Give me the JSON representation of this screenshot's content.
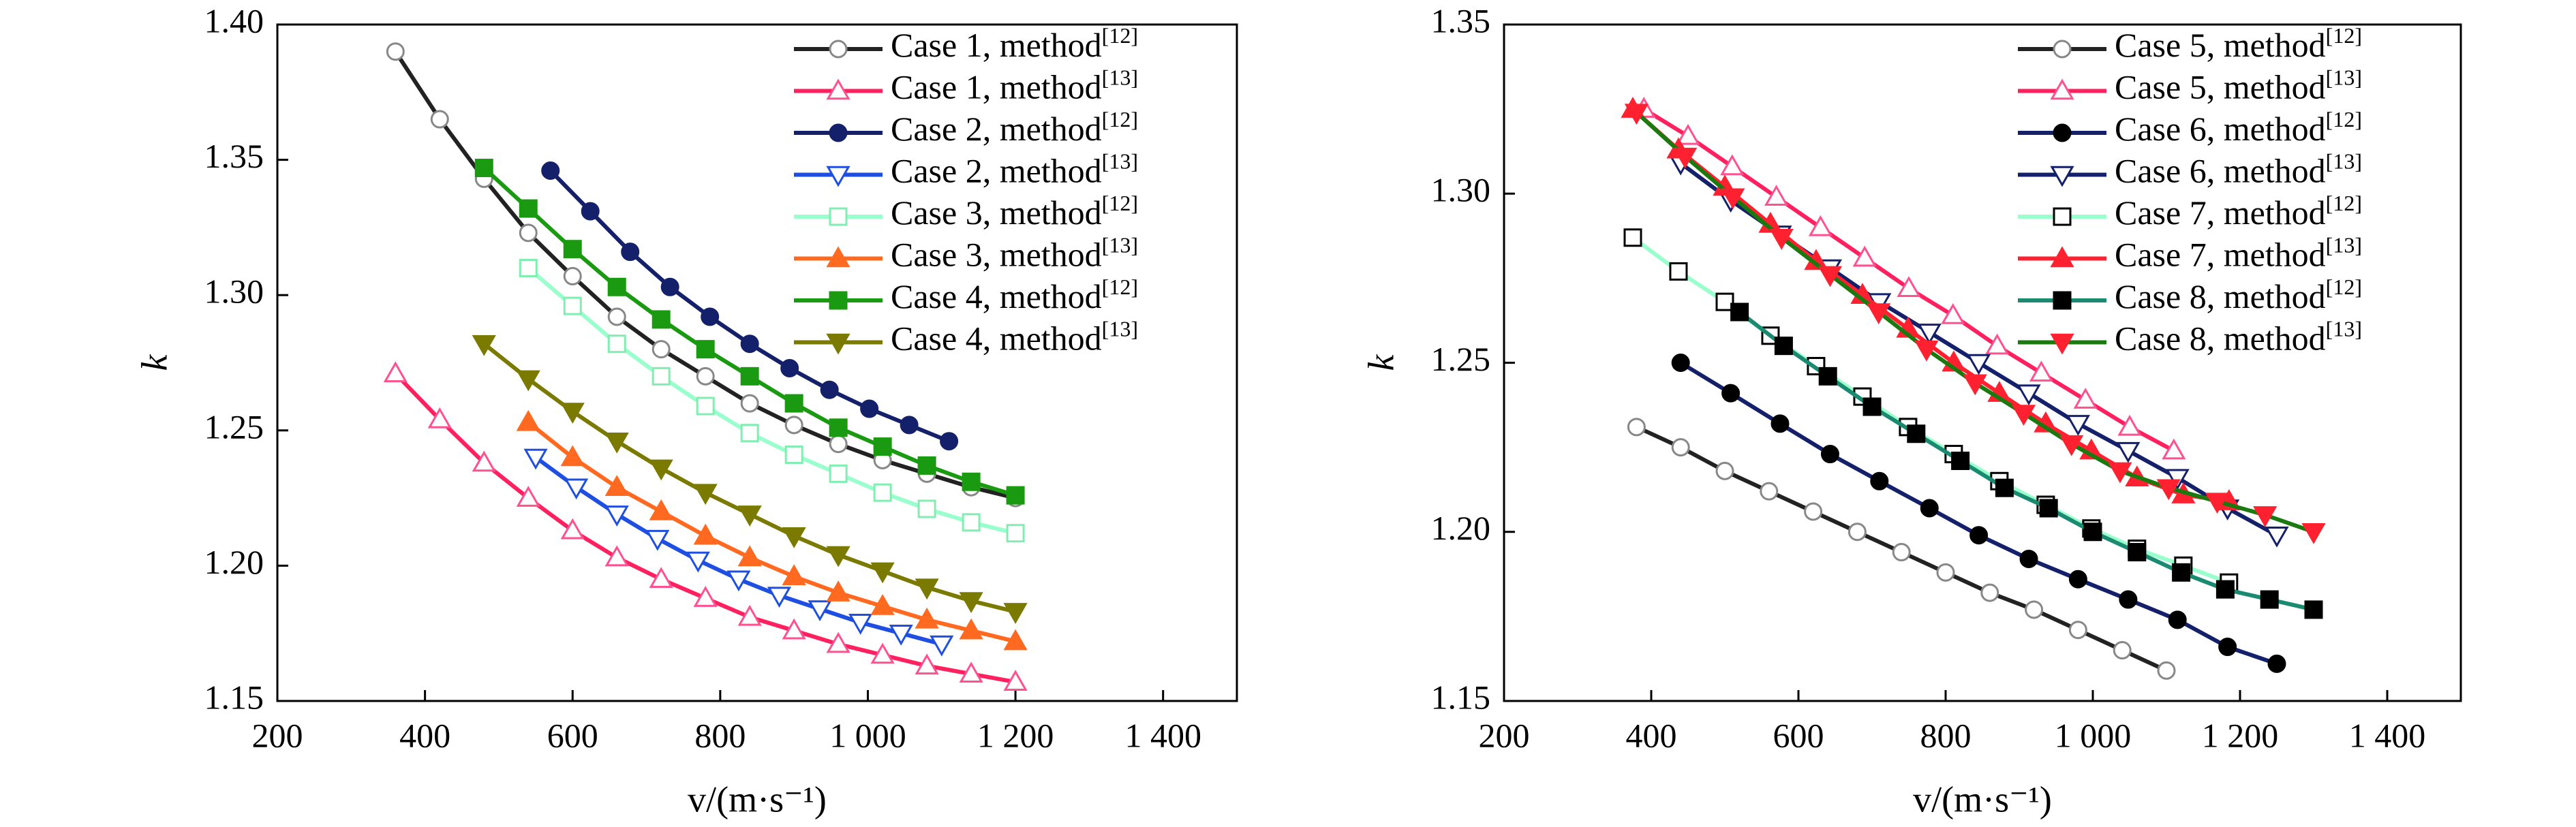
{
  "chart_data": [
    {
      "type": "line",
      "y_label": "k",
      "x_label": "v/(m·s⁻¹)",
      "xlim": [
        200,
        1500
      ],
      "xticks": [
        200,
        400,
        600,
        800,
        {
          "value": 1000,
          "label": "1 000"
        },
        {
          "value": 1200,
          "label": "1 200"
        },
        {
          "value": 1400,
          "label": "1 400"
        }
      ],
      "ylim": [
        1.15,
        1.4
      ],
      "yticks": [
        1.15,
        {
          "value": 1.2,
          "label": "1.20"
        },
        1.25,
        {
          "value": 1.3,
          "label": "1.30"
        },
        1.35,
        {
          "value": 1.4,
          "label": "1.40"
        }
      ],
      "legend": "upper right",
      "series": [
        {
          "name": "Case 1, method",
          "ref": "[12]",
          "color": "#222222",
          "marker": "circle",
          "marker_fill": "#ffffff",
          "marker_stroke": "#888888",
          "x": [
            360,
            420,
            480,
            540,
            600,
            660,
            720,
            780,
            840,
            900,
            960,
            1020,
            1080,
            1140,
            1200
          ],
          "values": [
            1.39,
            1.365,
            1.343,
            1.323,
            1.307,
            1.292,
            1.28,
            1.27,
            1.26,
            1.252,
            1.245,
            1.239,
            1.234,
            1.229,
            1.225
          ]
        },
        {
          "name": "Case 1, method",
          "ref": "[13]",
          "color": "#ff2060",
          "marker": "triangle",
          "marker_fill": "#ffffff",
          "marker_stroke": "#ff5090",
          "x": [
            360,
            420,
            480,
            540,
            600,
            660,
            720,
            780,
            840,
            900,
            960,
            1020,
            1080,
            1140,
            1200
          ],
          "values": [
            1.271,
            1.254,
            1.238,
            1.225,
            1.213,
            1.203,
            1.195,
            1.188,
            1.181,
            1.176,
            1.171,
            1.167,
            1.163,
            1.16,
            1.157
          ]
        },
        {
          "name": "Case 2, method",
          "ref": "[12]",
          "color": "#14206a",
          "marker": "circle",
          "marker_fill": "#14206a",
          "marker_stroke": "#14206a",
          "x": [
            570,
            624,
            678,
            732,
            786,
            840,
            894,
            948,
            1002,
            1056,
            1110
          ],
          "values": [
            1.346,
            1.331,
            1.316,
            1.303,
            1.292,
            1.282,
            1.273,
            1.265,
            1.258,
            1.252,
            1.246
          ]
        },
        {
          "name": "Case 2, method",
          "ref": "[13]",
          "color": "#1f4fe0",
          "marker": "triangle-down",
          "marker_fill": "#ffffff",
          "marker_stroke": "#1f4fe0",
          "x": [
            550,
            605,
            660,
            715,
            770,
            825,
            880,
            935,
            990,
            1045,
            1100
          ],
          "values": [
            1.24,
            1.229,
            1.219,
            1.21,
            1.202,
            1.195,
            1.189,
            1.184,
            1.179,
            1.175,
            1.171
          ]
        },
        {
          "name": "Case 3, method",
          "ref": "[12]",
          "color": "#99ffcc",
          "marker": "square",
          "marker_fill": "#ffffff",
          "marker_stroke": "#80eeb0",
          "x": [
            540,
            600,
            660,
            720,
            780,
            840,
            900,
            960,
            1020,
            1080,
            1140,
            1200
          ],
          "values": [
            1.31,
            1.296,
            1.282,
            1.27,
            1.259,
            1.249,
            1.241,
            1.234,
            1.227,
            1.221,
            1.216,
            1.212
          ]
        },
        {
          "name": "Case 3, method",
          "ref": "[13]",
          "color": "#ff6a20",
          "marker": "triangle",
          "marker_fill": "#ff6a20",
          "marker_stroke": "#ff6a20",
          "x": [
            540,
            600,
            660,
            720,
            780,
            840,
            900,
            960,
            1020,
            1080,
            1140,
            1200
          ],
          "values": [
            1.253,
            1.24,
            1.229,
            1.22,
            1.211,
            1.203,
            1.196,
            1.19,
            1.185,
            1.18,
            1.176,
            1.172
          ]
        },
        {
          "name": "Case 4, method",
          "ref": "[12]",
          "color": "#1a9a10",
          "marker": "square",
          "marker_fill": "#1a9a10",
          "marker_stroke": "#1a9a10",
          "x": [
            480,
            540,
            600,
            660,
            720,
            780,
            840,
            900,
            960,
            1020,
            1080,
            1140,
            1200
          ],
          "values": [
            1.347,
            1.332,
            1.317,
            1.303,
            1.291,
            1.28,
            1.27,
            1.26,
            1.251,
            1.244,
            1.237,
            1.231,
            1.226
          ]
        },
        {
          "name": "Case 4, method",
          "ref": "[13]",
          "color": "#7a7a00",
          "marker": "triangle-down",
          "marker_fill": "#7a7a00",
          "marker_stroke": "#7a7a00",
          "x": [
            480,
            540,
            600,
            660,
            720,
            780,
            840,
            900,
            960,
            1020,
            1080,
            1140,
            1200
          ],
          "values": [
            1.282,
            1.269,
            1.257,
            1.246,
            1.236,
            1.227,
            1.219,
            1.211,
            1.204,
            1.198,
            1.192,
            1.187,
            1.183
          ]
        }
      ]
    },
    {
      "type": "line",
      "y_label": "k",
      "x_label": "v/(m·s⁻¹)",
      "xlim": [
        200,
        1500
      ],
      "xticks": [
        200,
        400,
        600,
        800,
        {
          "value": 1000,
          "label": "1 000"
        },
        {
          "value": 1200,
          "label": "1 200"
        },
        {
          "value": 1400,
          "label": "1 400"
        }
      ],
      "ylim": [
        1.15,
        1.35
      ],
      "yticks": [
        1.15,
        {
          "value": 1.2,
          "label": "1.20"
        },
        1.25,
        {
          "value": 1.3,
          "label": "1.30"
        },
        1.35
      ],
      "legend": "upper right",
      "series": [
        {
          "name": "Case 5, method",
          "ref": "[12]",
          "color": "#222222",
          "marker": "circle",
          "marker_fill": "#ffffff",
          "marker_stroke": "#888888",
          "x": [
            380,
            440,
            500,
            560,
            620,
            680,
            740,
            800,
            860,
            920,
            980,
            1040,
            1100
          ],
          "values": [
            1.231,
            1.225,
            1.218,
            1.212,
            1.206,
            1.2,
            1.194,
            1.188,
            1.182,
            1.177,
            1.171,
            1.165,
            1.159
          ]
        },
        {
          "name": "Case 5, method",
          "ref": "[13]",
          "color": "#ff2060",
          "marker": "triangle",
          "marker_fill": "#ffffff",
          "marker_stroke": "#ff5090",
          "x": [
            390,
            450,
            510,
            570,
            630,
            690,
            750,
            810,
            870,
            930,
            990,
            1050,
            1110
          ],
          "values": [
            1.325,
            1.317,
            1.308,
            1.299,
            1.29,
            1.281,
            1.272,
            1.264,
            1.255,
            1.247,
            1.239,
            1.231,
            1.224
          ]
        },
        {
          "name": "Case 6, method",
          "ref": "[12]",
          "color": "#14206a",
          "marker": "circle",
          "marker_fill": "#000000",
          "marker_stroke": "#000000",
          "x": [
            440,
            508,
            575,
            643,
            710,
            778,
            845,
            913,
            980,
            1048,
            1115,
            1183,
            1250
          ],
          "values": [
            1.25,
            1.241,
            1.232,
            1.223,
            1.215,
            1.207,
            1.199,
            1.192,
            1.186,
            1.18,
            1.174,
            1.166,
            1.161
          ]
        },
        {
          "name": "Case 6, method",
          "ref": "[13]",
          "color": "#14206a",
          "marker": "triangle-down",
          "marker_fill": "#ffffff",
          "marker_stroke": "#14206a",
          "x": [
            440,
            508,
            575,
            643,
            710,
            778,
            845,
            913,
            980,
            1048,
            1115,
            1183,
            1250
          ],
          "values": [
            1.309,
            1.298,
            1.288,
            1.278,
            1.268,
            1.259,
            1.25,
            1.241,
            1.232,
            1.224,
            1.216,
            1.207,
            1.199
          ]
        },
        {
          "name": "Case 7, method",
          "ref": "[12]",
          "color": "#99ffcc",
          "marker": "square",
          "marker_fill": "#ffffff",
          "marker_stroke": "#000000",
          "x": [
            375,
            437,
            500,
            562,
            624,
            687,
            749,
            811,
            873,
            936,
            998,
            1060,
            1123,
            1185
          ],
          "values": [
            1.287,
            1.277,
            1.268,
            1.258,
            1.249,
            1.24,
            1.231,
            1.223,
            1.215,
            1.208,
            1.201,
            1.195,
            1.19,
            1.185
          ]
        },
        {
          "name": "Case 7, method",
          "ref": "[13]",
          "color": "#ff2030",
          "marker": "triangle",
          "marker_fill": "#ff2030",
          "marker_stroke": "#ff2030",
          "x": [
            375,
            437,
            500,
            562,
            624,
            687,
            749,
            811,
            873,
            936,
            998,
            1060,
            1123,
            1185
          ],
          "values": [
            1.325,
            1.313,
            1.302,
            1.291,
            1.28,
            1.27,
            1.26,
            1.25,
            1.241,
            1.232,
            1.224,
            1.216,
            1.211,
            1.209
          ]
        },
        {
          "name": "Case 8, method",
          "ref": "[12]",
          "color": "#1a8a70",
          "marker": "square",
          "marker_fill": "#000000",
          "marker_stroke": "#000000",
          "x": [
            520,
            580,
            640,
            700,
            760,
            820,
            880,
            940,
            1000,
            1060,
            1120,
            1180,
            1240,
            1300
          ],
          "values": [
            1.265,
            1.255,
            1.246,
            1.237,
            1.229,
            1.221,
            1.213,
            1.207,
            1.2,
            1.194,
            1.188,
            1.183,
            1.18,
            1.177
          ]
        },
        {
          "name": "Case 8, method",
          "ref": "[13]",
          "color": "#1a7a10",
          "marker": "triangle-down",
          "marker_fill": "#ff2030",
          "marker_stroke": "#ff2030",
          "x": [
            380,
            446,
            511,
            577,
            643,
            709,
            774,
            840,
            906,
            971,
            1037,
            1103,
            1169,
            1234,
            1300
          ],
          "values": [
            1.324,
            1.311,
            1.299,
            1.287,
            1.276,
            1.265,
            1.254,
            1.244,
            1.235,
            1.226,
            1.218,
            1.213,
            1.209,
            1.205,
            1.2
          ]
        }
      ]
    }
  ]
}
